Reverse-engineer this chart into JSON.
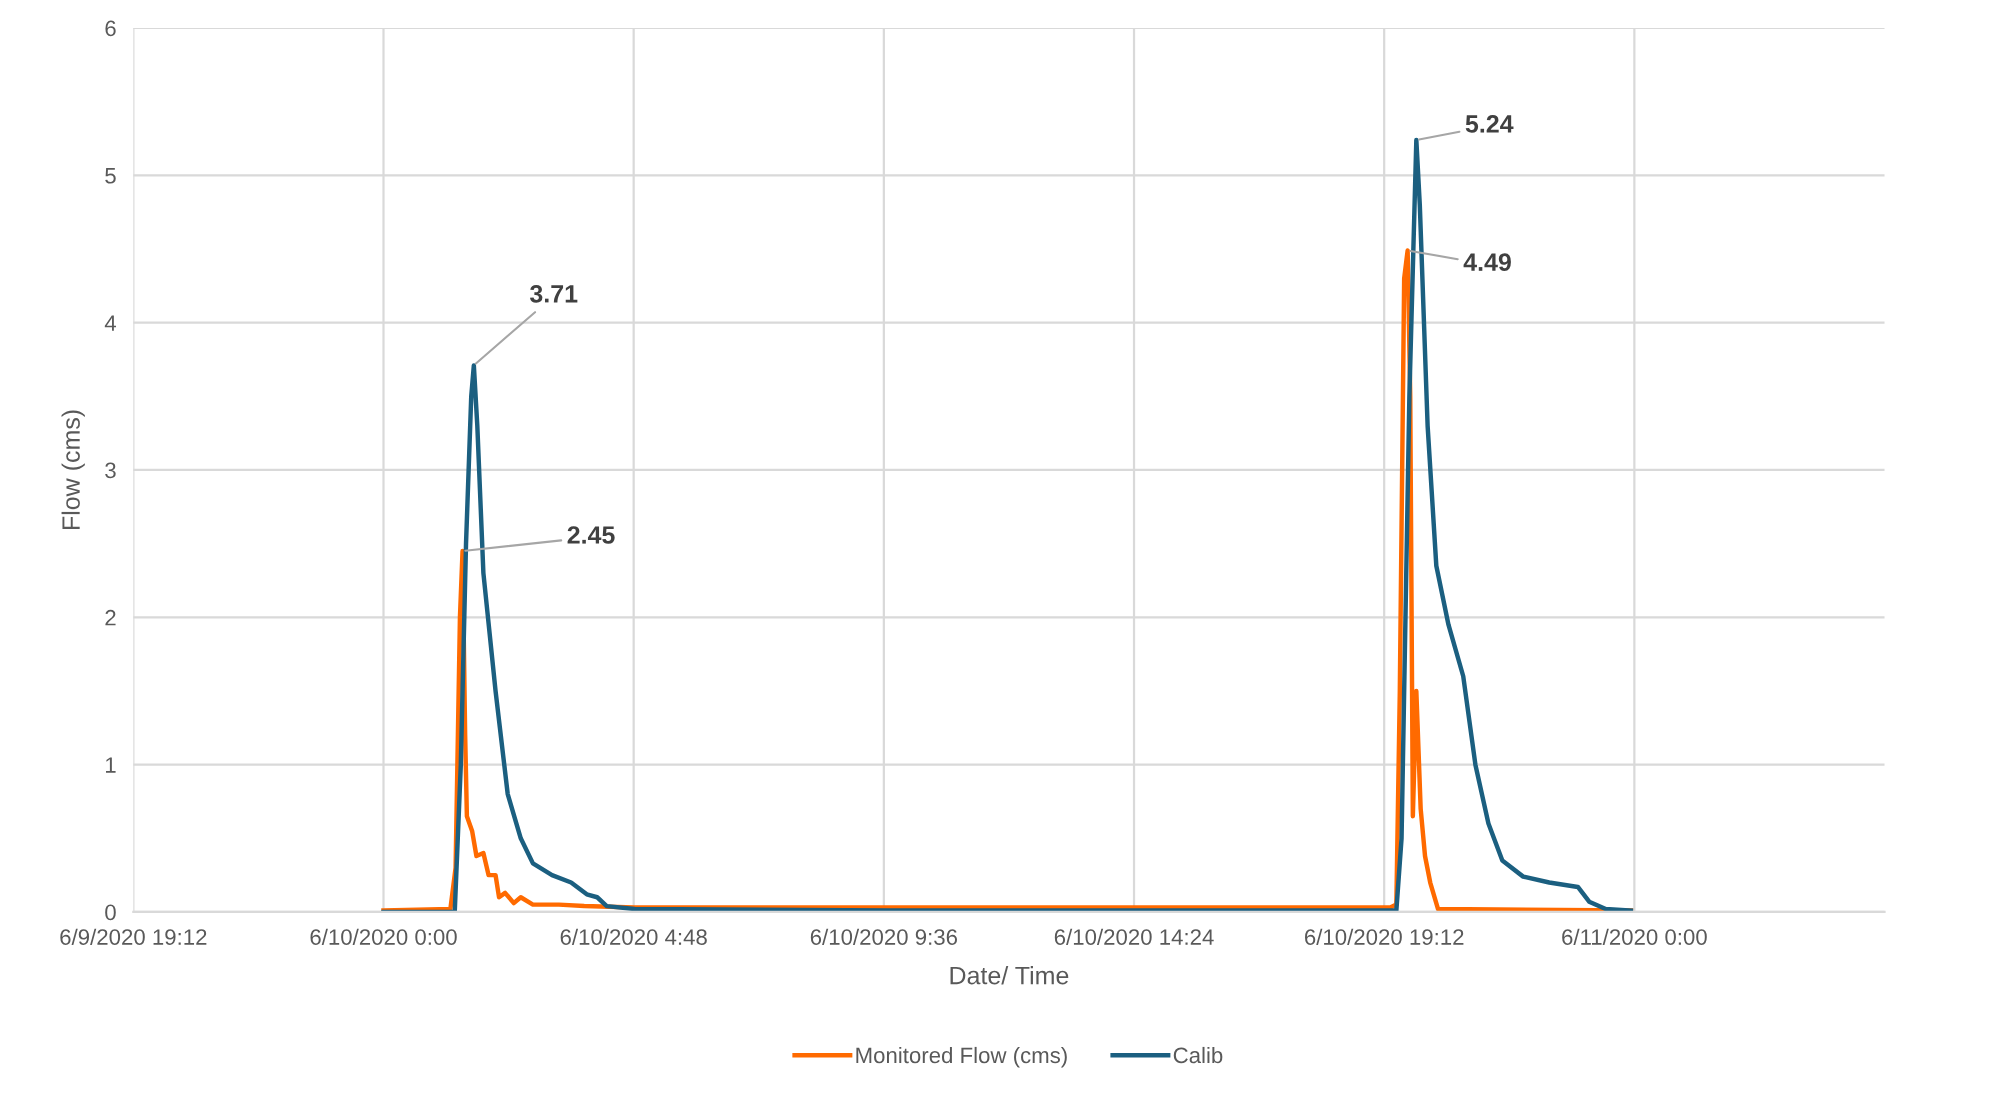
{
  "chart_data": {
    "type": "line",
    "xlabel": "Date/ Time",
    "ylabel": "Flow (cms)",
    "xlim": [
      "2020-06-09T19:12",
      "2020-06-11T04:48"
    ],
    "xticks": [
      {
        "value": "2020-06-09T19:12",
        "label": "6/9/2020 19:12"
      },
      {
        "value": "2020-06-10T00:00",
        "label": "6/10/2020 0:00"
      },
      {
        "value": "2020-06-10T04:48",
        "label": "6/10/2020 4:48"
      },
      {
        "value": "2020-06-10T09:36",
        "label": "6/10/2020 9:36"
      },
      {
        "value": "2020-06-10T14:24",
        "label": "6/10/2020 14:24"
      },
      {
        "value": "2020-06-10T19:12",
        "label": "6/10/2020 19:12"
      },
      {
        "value": "2020-06-11T00:00",
        "label": "6/11/2020 0:00"
      }
    ],
    "ylim": [
      0,
      6
    ],
    "yticks": [
      0,
      1,
      2,
      3,
      4,
      5,
      6
    ],
    "grid": true,
    "legend": "bottom",
    "marker": "none",
    "line_style": "solid",
    "series": [
      {
        "name": "Monitored Flow (cms)",
        "color": "#ff6a00",
        "x": [
          "2020-06-10T00:00",
          "2020-06-10T01:17",
          "2020-06-10T01:23",
          "2020-06-10T01:28",
          "2020-06-10T01:31",
          "2020-06-10T01:34",
          "2020-06-10T01:36",
          "2020-06-10T01:42",
          "2020-06-10T01:47",
          "2020-06-10T01:55",
          "2020-06-10T02:01",
          "2020-06-10T02:09",
          "2020-06-10T02:13",
          "2020-06-10T02:20",
          "2020-06-10T02:30",
          "2020-06-10T02:38",
          "2020-06-10T02:52",
          "2020-06-10T03:22",
          "2020-06-10T03:51",
          "2020-06-10T04:49",
          "2020-06-10T14:34",
          "2020-06-10T19:19",
          "2020-06-10T19:26",
          "2020-06-10T19:30",
          "2020-06-10T19:35",
          "2020-06-10T19:39",
          "2020-06-10T19:42",
          "2020-06-10T19:45",
          "2020-06-10T19:49",
          "2020-06-10T19:54",
          "2020-06-10T19:59",
          "2020-06-10T20:05",
          "2020-06-10T20:14",
          "2020-06-10T23:56"
        ],
        "values": [
          0.01,
          0.02,
          0.3,
          2.0,
          2.45,
          1.2,
          0.65,
          0.55,
          0.38,
          0.4,
          0.25,
          0.25,
          0.1,
          0.13,
          0.06,
          0.1,
          0.05,
          0.05,
          0.04,
          0.03,
          0.03,
          0.03,
          0.05,
          1.5,
          4.3,
          4.49,
          3.5,
          0.65,
          1.5,
          0.7,
          0.38,
          0.2,
          0.02,
          0.01
        ]
      },
      {
        "name": "Calib",
        "color": "#1b5f80",
        "x": [
          "2020-06-10T00:00",
          "2020-06-10T01:22",
          "2020-06-10T01:29",
          "2020-06-10T01:35",
          "2020-06-10T01:41",
          "2020-06-10T01:44",
          "2020-06-10T01:48",
          "2020-06-10T01:55",
          "2020-06-10T02:09",
          "2020-06-10T02:23",
          "2020-06-10T02:38",
          "2020-06-10T02:52",
          "2020-06-10T03:14",
          "2020-06-10T03:36",
          "2020-06-10T03:54",
          "2020-06-10T04:06",
          "2020-06-10T04:17",
          "2020-06-10T04:49",
          "2020-06-10T09:42",
          "2020-06-10T19:26",
          "2020-06-10T19:32",
          "2020-06-10T19:41",
          "2020-06-10T19:49",
          "2020-06-10T19:53",
          "2020-06-10T20:02",
          "2020-06-10T20:12",
          "2020-06-10T20:26",
          "2020-06-10T20:43",
          "2020-06-10T20:57",
          "2020-06-10T21:12",
          "2020-06-10T21:28",
          "2020-06-10T21:52",
          "2020-06-10T22:22",
          "2020-06-10T22:55",
          "2020-06-10T23:08",
          "2020-06-10T23:27",
          "2020-06-10T23:56"
        ],
        "values": [
          0.0,
          0.0,
          1.0,
          2.5,
          3.5,
          3.71,
          3.3,
          2.3,
          1.5,
          0.8,
          0.5,
          0.33,
          0.25,
          0.2,
          0.12,
          0.1,
          0.04,
          0.02,
          0.01,
          0.01,
          0.5,
          3.5,
          5.24,
          4.8,
          3.3,
          2.35,
          1.95,
          1.6,
          1.0,
          0.6,
          0.35,
          0.24,
          0.2,
          0.17,
          0.07,
          0.02,
          0.01
        ]
      }
    ],
    "annotations": [
      {
        "text": "3.71",
        "x": "2020-06-10T01:44",
        "y": 3.71
      },
      {
        "text": "2.45",
        "x": "2020-06-10T01:31",
        "y": 2.45
      },
      {
        "text": "5.24",
        "x": "2020-06-10T19:49",
        "y": 5.24
      },
      {
        "text": "4.49",
        "x": "2020-06-10T19:39",
        "y": 4.49
      }
    ]
  }
}
